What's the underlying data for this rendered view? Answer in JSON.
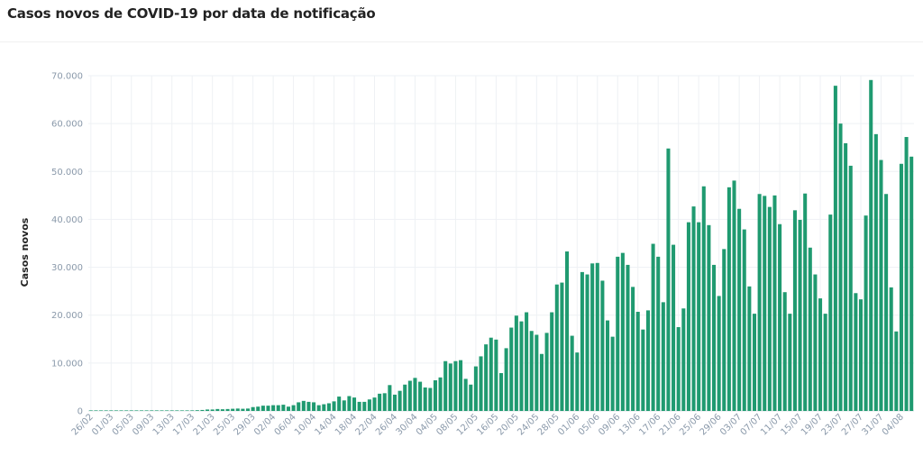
{
  "title": "Casos novos de COVID-19 por data de notificação",
  "colors": {
    "bar": "#1f9a70",
    "grid": "#eef1f4",
    "tick": "#8a99aa"
  },
  "chart_data": {
    "type": "bar",
    "title": "Casos novos de COVID-19 por data de notificação",
    "xlabel": "",
    "ylabel": "Casos novos",
    "ylim": [
      0,
      70000
    ],
    "yticks": [
      "0",
      "10.000",
      "20.000",
      "30.000",
      "40.000",
      "50.000",
      "60.000",
      "70.000"
    ],
    "grid": true,
    "xtick_every": 4,
    "categories": [
      "26/02",
      "27/02",
      "28/02",
      "29/02",
      "01/03",
      "02/03",
      "03/03",
      "04/03",
      "05/03",
      "06/03",
      "07/03",
      "08/03",
      "09/03",
      "10/03",
      "11/03",
      "12/03",
      "13/03",
      "14/03",
      "15/03",
      "16/03",
      "17/03",
      "18/03",
      "19/03",
      "20/03",
      "21/03",
      "22/03",
      "23/03",
      "24/03",
      "25/03",
      "26/03",
      "27/03",
      "28/03",
      "29/03",
      "30/03",
      "31/03",
      "01/04",
      "02/04",
      "03/04",
      "04/04",
      "05/04",
      "06/04",
      "07/04",
      "08/04",
      "09/04",
      "10/04",
      "11/04",
      "12/04",
      "13/04",
      "14/04",
      "15/04",
      "16/04",
      "17/04",
      "18/04",
      "19/04",
      "20/04",
      "21/04",
      "22/04",
      "23/04",
      "24/04",
      "25/04",
      "26/04",
      "27/04",
      "28/04",
      "29/04",
      "30/04",
      "01/05",
      "02/05",
      "03/05",
      "04/05",
      "05/05",
      "06/05",
      "07/05",
      "08/05",
      "09/05",
      "10/05",
      "11/05",
      "12/05",
      "13/05",
      "14/05",
      "15/05",
      "16/05",
      "17/05",
      "18/05",
      "19/05",
      "20/05",
      "21/05",
      "22/05",
      "23/05",
      "24/05",
      "25/05",
      "26/05",
      "27/05",
      "28/05",
      "29/05",
      "30/05",
      "31/05",
      "01/06",
      "02/06",
      "03/06",
      "04/06",
      "05/06",
      "06/06",
      "07/06",
      "08/06",
      "09/06",
      "10/06",
      "11/06",
      "12/06",
      "13/06",
      "14/06",
      "15/06",
      "16/06",
      "17/06",
      "18/06",
      "19/06",
      "20/06",
      "21/06",
      "22/06",
      "23/06",
      "24/06",
      "25/06",
      "26/06",
      "27/06",
      "28/06",
      "29/06",
      "30/06",
      "01/07",
      "02/07",
      "03/07",
      "04/07",
      "05/07",
      "06/07",
      "07/07",
      "08/07",
      "09/07",
      "10/07",
      "11/07",
      "12/07",
      "13/07",
      "14/07",
      "15/07",
      "16/07",
      "17/07",
      "18/07",
      "19/07",
      "20/07",
      "21/07",
      "22/07",
      "23/07",
      "24/07",
      "25/07",
      "26/07",
      "27/07",
      "28/07",
      "29/07",
      "30/07",
      "31/07",
      "01/08",
      "02/08",
      "03/08",
      "04/08",
      "05/08",
      "06/08"
    ],
    "values": [
      1,
      0,
      0,
      1,
      1,
      0,
      1,
      1,
      1,
      5,
      5,
      5,
      10,
      10,
      20,
      30,
      50,
      50,
      80,
      100,
      120,
      150,
      200,
      300,
      300,
      400,
      350,
      400,
      450,
      500,
      450,
      500,
      800,
      900,
      1100,
      1100,
      1200,
      1200,
      1300,
      900,
      1200,
      1800,
      2100,
      1900,
      1800,
      1200,
      1400,
      1600,
      2000,
      3000,
      2200,
      3100,
      2800,
      1900,
      1900,
      2400,
      2800,
      3600,
      3700,
      5400,
      3400,
      4200,
      5500,
      6300,
      6900,
      6100,
      4900,
      4800,
      6400,
      7000,
      10400,
      9900,
      10400,
      10600,
      6700,
      5500,
      9300,
      11400,
      13900,
      15300,
      14900,
      7900,
      13100,
      17400,
      19900,
      18700,
      20600,
      16700,
      15900,
      11900,
      16300,
      20600,
      26400,
      26800,
      33300,
      15700,
      12200,
      29000,
      28500,
      30800,
      30900,
      27200,
      18900,
      15500,
      32200,
      33000,
      30500,
      25900,
      20700,
      17000,
      21000,
      34900,
      32200,
      22700,
      54800,
      34700,
      17500,
      21400,
      39400,
      42700,
      39400,
      46900,
      38800,
      30500,
      24000,
      33800,
      46700,
      48100,
      42200,
      37900,
      26000,
      20300,
      45300,
      44900,
      42600,
      45000,
      39000,
      24800,
      20300,
      41900,
      39900,
      45400,
      34100,
      28500,
      23500,
      20300,
      41000,
      67900,
      60000,
      55900,
      51200,
      24600,
      23300,
      40800,
      69100,
      57800,
      52400,
      45300,
      25800,
      16600,
      51600,
      57200,
      53100
    ]
  }
}
